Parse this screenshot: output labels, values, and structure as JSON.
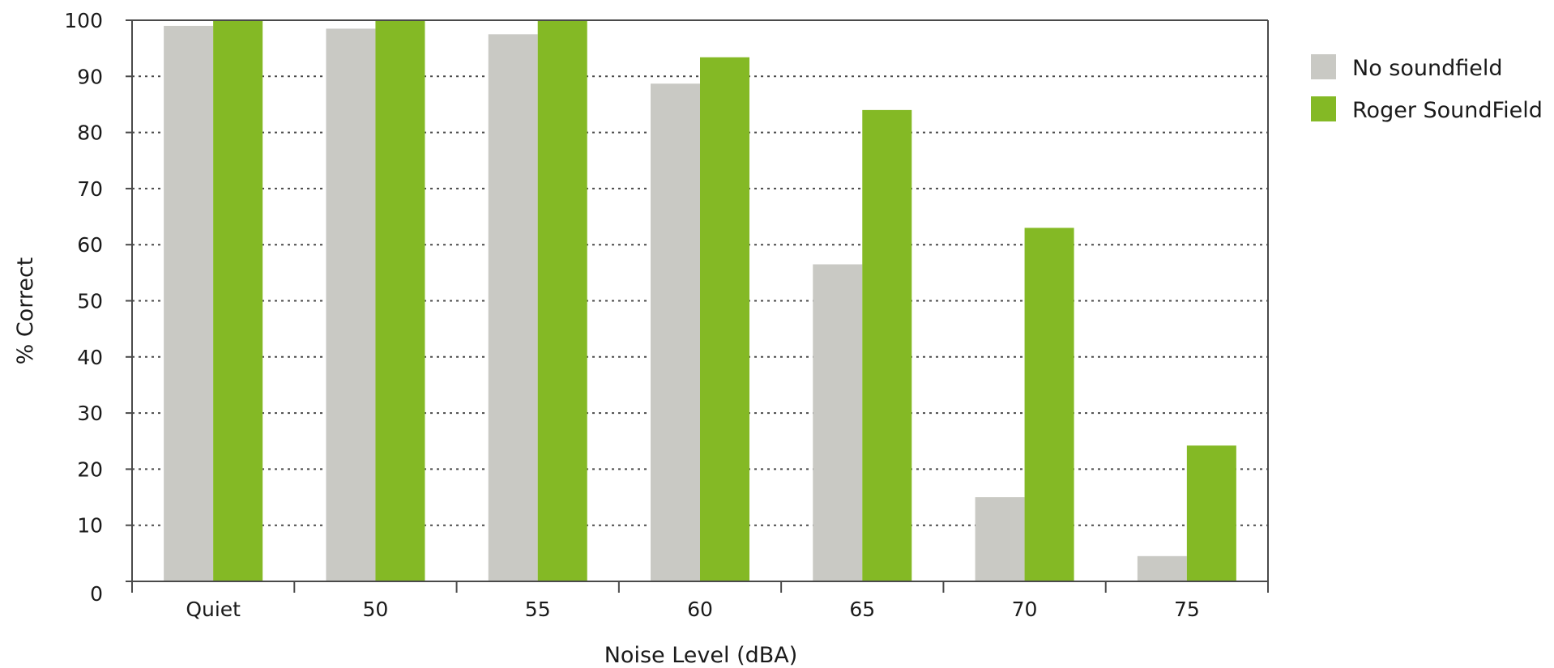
{
  "chart_data": {
    "type": "bar",
    "categories": [
      "Quiet",
      "50",
      "55",
      "60",
      "65",
      "70",
      "75"
    ],
    "series": [
      {
        "name": "No soundfield",
        "values": [
          99,
          98.5,
          97.5,
          88.7,
          56.5,
          15,
          4.5
        ],
        "color": "#c9c9c4"
      },
      {
        "name": "Roger SoundField",
        "values": [
          100,
          100,
          100,
          93.4,
          84,
          63,
          24.2
        ],
        "color": "#84b925"
      }
    ],
    "xlabel": "Noise Level (dBA)",
    "ylabel": "% Correct",
    "ylim": [
      0,
      100
    ],
    "yticks": [
      "0",
      "10",
      "20",
      "30",
      "40",
      "50",
      "60",
      "70",
      "80",
      "90",
      "100"
    ],
    "grid": "horizontal dotted",
    "legend": "right"
  }
}
